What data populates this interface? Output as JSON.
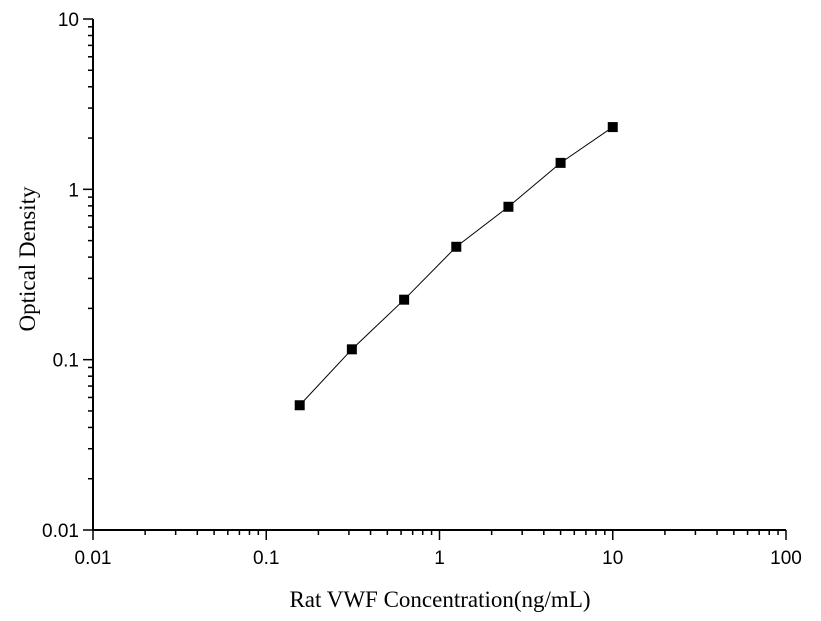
{
  "chart_data": {
    "type": "scatter",
    "xlabel": "Rat VWF Concentration(ng/mL)",
    "ylabel": "Optical Density",
    "xscale": "log",
    "yscale": "log",
    "xlim": [
      0.01,
      100
    ],
    "ylim": [
      0.01,
      10
    ],
    "xticks": [
      0.01,
      0.1,
      1,
      10,
      100
    ],
    "xtick_labels": [
      "0.01",
      "0.1",
      "1",
      "10",
      "100"
    ],
    "yticks": [
      0.01,
      0.1,
      1,
      10
    ],
    "ytick_labels": [
      "0.01",
      "0.1",
      "1",
      "10"
    ],
    "grid": false,
    "series": [
      {
        "x": [
          0.156,
          0.312,
          0.625,
          1.25,
          2.5,
          5,
          10
        ],
        "y": [
          0.054,
          0.115,
          0.225,
          0.46,
          0.79,
          1.43,
          2.32
        ],
        "marker": "square",
        "line": true,
        "color": "#000000"
      }
    ]
  }
}
